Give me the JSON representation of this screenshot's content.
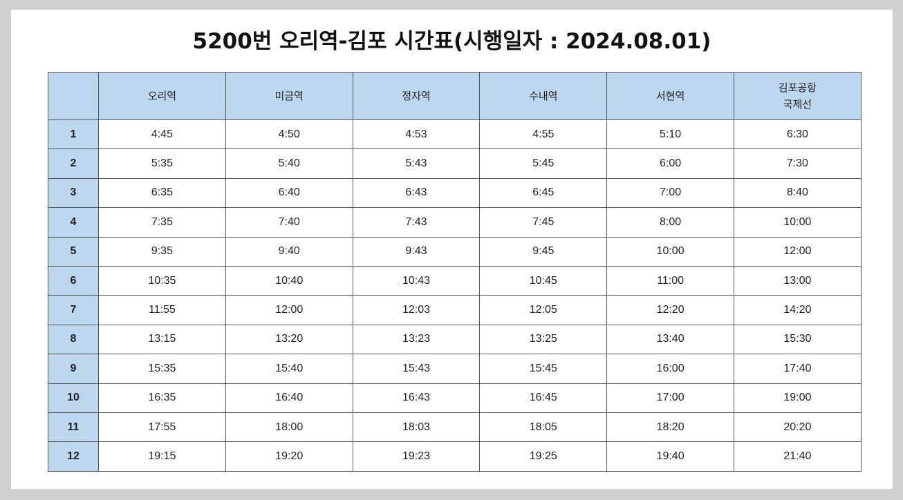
{
  "title": "5200번 오리역-김포 시간표(시행일자 : 2024.08.01)",
  "header": {
    "corner": "",
    "columns": [
      "오리역",
      "미금역",
      "정자역",
      "수내역",
      "서현역",
      "김포공항\n국제선"
    ],
    "last_line1": "김포공항",
    "last_line2": "국제선"
  },
  "rows": [
    {
      "no": "1",
      "times": [
        "4:45",
        "4:50",
        "4:53",
        "4:55",
        "5:10",
        "6:30"
      ]
    },
    {
      "no": "2",
      "times": [
        "5:35",
        "5:40",
        "5:43",
        "5:45",
        "6:00",
        "7:30"
      ]
    },
    {
      "no": "3",
      "times": [
        "6:35",
        "6:40",
        "6:43",
        "6:45",
        "7:00",
        "8:40"
      ]
    },
    {
      "no": "4",
      "times": [
        "7:35",
        "7:40",
        "7:43",
        "7:45",
        "8:00",
        "10:00"
      ]
    },
    {
      "no": "5",
      "times": [
        "9:35",
        "9:40",
        "9:43",
        "9:45",
        "10:00",
        "12:00"
      ]
    },
    {
      "no": "6",
      "times": [
        "10:35",
        "10:40",
        "10:43",
        "10:45",
        "11:00",
        "13:00"
      ]
    },
    {
      "no": "7",
      "times": [
        "11:55",
        "12:00",
        "12:03",
        "12:05",
        "12:20",
        "14:20"
      ]
    },
    {
      "no": "8",
      "times": [
        "13:15",
        "13:20",
        "13:23",
        "13:25",
        "13:40",
        "15:30"
      ]
    },
    {
      "no": "9",
      "times": [
        "15:35",
        "15:40",
        "15:43",
        "15:45",
        "16:00",
        "17:40"
      ]
    },
    {
      "no": "10",
      "times": [
        "16:35",
        "16:40",
        "16:43",
        "16:45",
        "17:00",
        "19:00"
      ]
    },
    {
      "no": "11",
      "times": [
        "17:55",
        "18:00",
        "18:03",
        "18:05",
        "18:20",
        "20:20"
      ]
    },
    {
      "no": "12",
      "times": [
        "19:15",
        "19:20",
        "19:23",
        "19:25",
        "19:40",
        "21:40"
      ]
    }
  ],
  "colors": {
    "header_bg": "#bdd7ee",
    "border": "#555555",
    "page_bg": "#d0d0d0",
    "sheet_bg": "#ffffff"
  }
}
